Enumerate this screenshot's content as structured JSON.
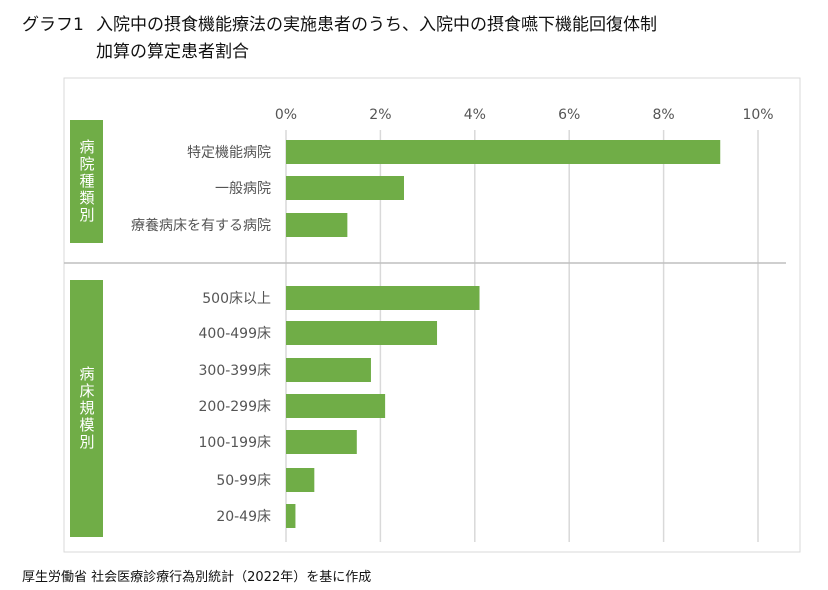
{
  "title": {
    "prefix": "グラフ1",
    "line1": "入院中の摂食機能療法の実施患者のうち、入院中の摂食嚥下機能回復体制",
    "line2": "加算の算定患者割合"
  },
  "source": "厚生労働省 社会医療診療行為別統計（2022年）を基に作成",
  "colors": {
    "bar": "#70ad47",
    "grid": "#d9d9d9",
    "group_label_bg": "#70ad47"
  },
  "chart_data": {
    "type": "bar",
    "orientation": "horizontal",
    "title": "入院中の摂食機能療法の実施患者のうち、入院中の摂食嚥下機能回復体制加算の算定患者割合",
    "xlim": [
      0,
      10
    ],
    "xticks": [
      0,
      2,
      4,
      6,
      8,
      10
    ],
    "xtick_labels": [
      "0%",
      "2%",
      "4%",
      "6%",
      "8%",
      "10%"
    ],
    "grid": true,
    "unit": "%",
    "groups": [
      {
        "name": "病院種類別",
        "categories": [
          "特定機能病院",
          "一般病院",
          "療養病床を有する病院"
        ],
        "values": [
          9.2,
          2.5,
          1.3
        ]
      },
      {
        "name": "病床規模別",
        "categories": [
          "500床以上",
          "400-499床",
          "300-399床",
          "200-299床",
          "100-199床",
          "50-99床",
          "20-49床"
        ],
        "values": [
          4.1,
          3.2,
          1.8,
          2.1,
          1.5,
          0.6,
          0.2
        ]
      }
    ]
  }
}
